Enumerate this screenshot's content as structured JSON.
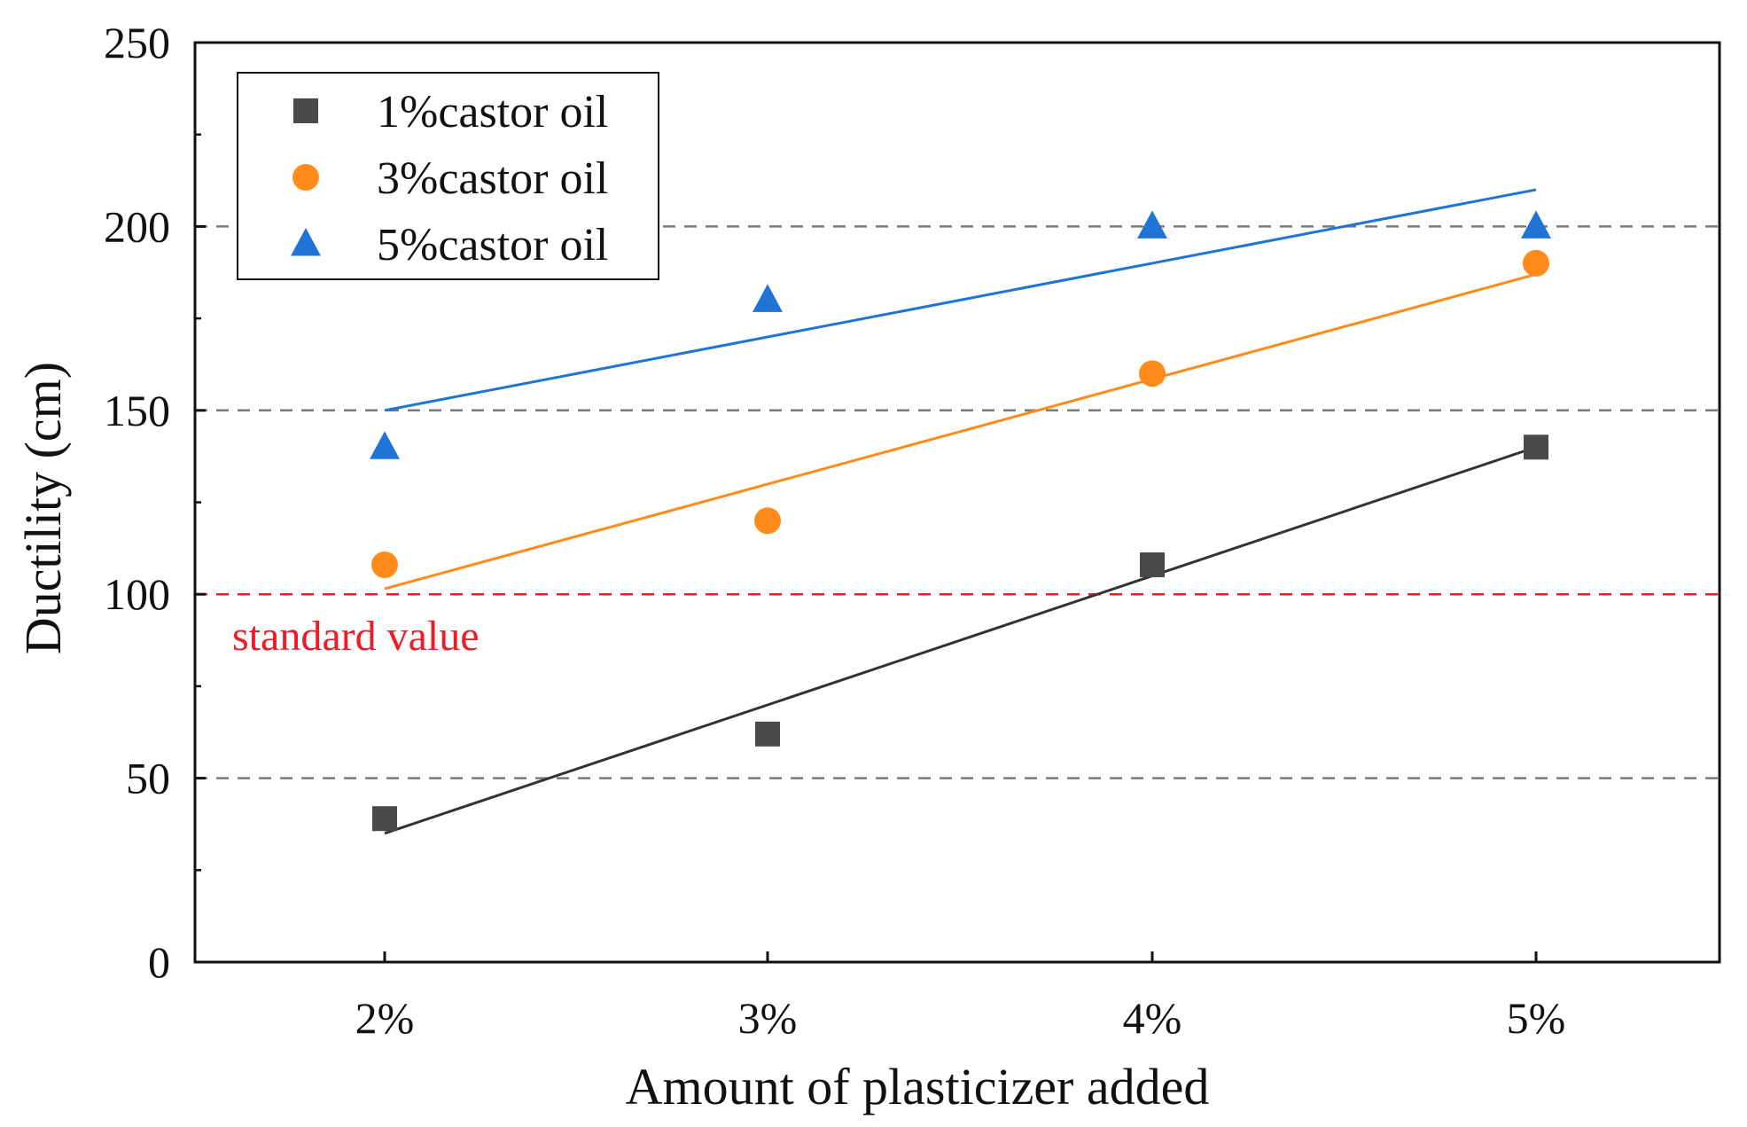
{
  "chart_data": {
    "type": "scatter",
    "title": "",
    "xlabel": "Amount of plasticizer added",
    "ylabel": "Ductility (cm)",
    "categories": [
      "2%",
      "3%",
      "4%",
      "5%"
    ],
    "ylim": [
      0,
      250
    ],
    "yticks": [
      0,
      50,
      100,
      150,
      200,
      250
    ],
    "grid_lines": [
      50,
      150,
      200
    ],
    "legend_position": "top-left",
    "series": [
      {
        "name": "1%castor oil",
        "marker": "square",
        "color": "#4a4a4a",
        "line_color": "#333333",
        "values": [
          39,
          62,
          108,
          140
        ],
        "fit": [
          35,
          70,
          105,
          140
        ]
      },
      {
        "name": "3%castor oil",
        "marker": "circle",
        "color": "#ff8c1a",
        "line_color": "#ff8c1a",
        "values": [
          108,
          120,
          160,
          190
        ],
        "fit": [
          101.5,
          130,
          158.5,
          187
        ]
      },
      {
        "name": "5%castor oil",
        "marker": "triangle",
        "color": "#1f74d6",
        "line_color": "#1f74d6",
        "values": [
          140,
          180,
          200,
          200
        ],
        "fit": [
          150,
          170,
          190,
          210
        ]
      }
    ],
    "reference_line": {
      "value": 100,
      "label": "standard value",
      "color": "#ee1c25"
    }
  }
}
